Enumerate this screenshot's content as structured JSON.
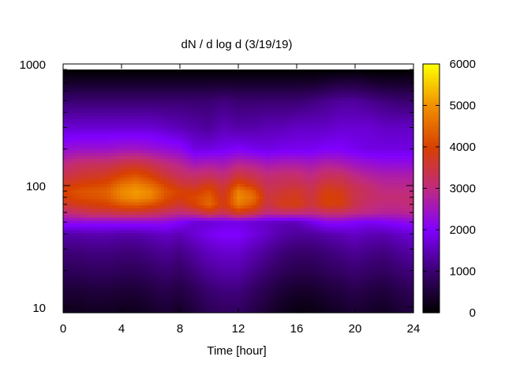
{
  "chart_data": {
    "type": "heatmap",
    "title": "dN / d log d (3/19/19)",
    "xlabel": "Time [hour]",
    "ylabel": "",
    "x_ticks": [
      "0",
      "4",
      "8",
      "12",
      "16",
      "20",
      "24"
    ],
    "y_ticks": [
      "10",
      "100",
      "1000"
    ],
    "colorbar_ticks": [
      "0",
      "1000",
      "2000",
      "3000",
      "4000",
      "5000",
      "6000"
    ],
    "xlim": [
      0,
      24
    ],
    "ylim": [
      9,
      1000
    ],
    "y_scale": "log",
    "data_y_range": [
      9,
      900
    ],
    "colorbar_range": [
      0,
      6000
    ],
    "colormap": [
      "#000000",
      "#3a0070",
      "#8000ff",
      "#c02a80",
      "#d84000",
      "#f09000",
      "#ffff00"
    ],
    "grid": false,
    "x": [
      0,
      1,
      2,
      3,
      4,
      5,
      6,
      7,
      8,
      9,
      10,
      11,
      12,
      13,
      14,
      15,
      16,
      17,
      18,
      19,
      20,
      21,
      22,
      23,
      24
    ],
    "diameter": [
      10,
      14,
      20,
      30,
      40,
      50,
      60,
      70,
      80,
      90,
      100,
      120,
      150,
      200,
      300,
      500,
      700,
      900
    ],
    "z": [
      [
        300,
        300,
        350,
        350,
        300,
        300,
        400,
        500,
        400,
        600,
        800,
        900,
        900,
        700,
        500,
        300,
        200,
        200,
        300,
        400,
        500,
        400,
        350,
        500,
        600
      ],
      [
        500,
        500,
        550,
        550,
        500,
        500,
        600,
        700,
        600,
        800,
        1000,
        1100,
        1100,
        900,
        700,
        500,
        400,
        400,
        500,
        600,
        700,
        600,
        550,
        700,
        800
      ],
      [
        800,
        800,
        850,
        850,
        800,
        800,
        900,
        1000,
        900,
        1100,
        1300,
        1400,
        1400,
        1200,
        1000,
        800,
        700,
        700,
        800,
        900,
        1000,
        900,
        850,
        1000,
        1100
      ],
      [
        1100,
        1100,
        1150,
        1150,
        1100,
        1100,
        1200,
        1300,
        1200,
        1400,
        1600,
        1700,
        1700,
        1500,
        1300,
        1100,
        1000,
        1000,
        1100,
        1200,
        1300,
        1200,
        1150,
        1300,
        1400
      ],
      [
        1400,
        1400,
        1450,
        1450,
        1400,
        1400,
        1500,
        1600,
        1500,
        1700,
        1900,
        2000,
        2000,
        1800,
        1600,
        1400,
        1300,
        1300,
        1400,
        1500,
        1600,
        1500,
        1450,
        1600,
        1700
      ],
      [
        2200,
        2200,
        2200,
        2200,
        2200,
        2200,
        2200,
        2200,
        2000,
        1700,
        1700,
        1800,
        1800,
        1700,
        1600,
        1500,
        1500,
        1800,
        2100,
        2100,
        2000,
        1900,
        2000,
        2100,
        2200
      ],
      [
        3000,
        3200,
        3400,
        3400,
        3500,
        3500,
        3400,
        3200,
        3000,
        3200,
        3600,
        3300,
        3800,
        3500,
        3000,
        3100,
        3100,
        3000,
        3200,
        3200,
        3000,
        2900,
        2800,
        2800,
        2900
      ],
      [
        3600,
        3800,
        3900,
        4000,
        4300,
        4400,
        4200,
        3900,
        3600,
        4000,
        4500,
        3800,
        4700,
        4300,
        3400,
        3800,
        3900,
        3500,
        3900,
        3900,
        3400,
        3100,
        3000,
        3000,
        3100
      ],
      [
        3900,
        4100,
        4200,
        4300,
        4800,
        5000,
        4800,
        4200,
        3900,
        4100,
        4400,
        3700,
        4900,
        4600,
        3500,
        3700,
        3800,
        3500,
        4000,
        3900,
        3400,
        3200,
        3100,
        3100,
        3100
      ],
      [
        4000,
        4200,
        4300,
        4400,
        4900,
        5100,
        4900,
        4300,
        4000,
        3900,
        4200,
        3600,
        4800,
        4400,
        3400,
        3600,
        3700,
        3400,
        3900,
        3800,
        3400,
        3200,
        3000,
        3000,
        3000
      ],
      [
        3800,
        4000,
        4100,
        4200,
        4700,
        4900,
        4600,
        4100,
        3700,
        3600,
        3900,
        3500,
        4300,
        3900,
        3300,
        3400,
        3500,
        3300,
        3700,
        3600,
        3300,
        3100,
        2900,
        2900,
        2900
      ],
      [
        3400,
        3600,
        3700,
        3800,
        4100,
        4300,
        4000,
        3600,
        3300,
        3200,
        3300,
        3100,
        3600,
        3400,
        3100,
        3200,
        3200,
        3000,
        3300,
        3300,
        3000,
        2800,
        2700,
        2700,
        2700
      ],
      [
        3000,
        3200,
        3300,
        3300,
        3500,
        3600,
        3400,
        3100,
        2900,
        2600,
        2700,
        2600,
        2900,
        2800,
        2600,
        2700,
        2700,
        2600,
        2800,
        2700,
        2500,
        2400,
        2300,
        2300,
        2300
      ],
      [
        2300,
        2400,
        2400,
        2400,
        2500,
        2500,
        2400,
        2300,
        2200,
        1800,
        1800,
        1900,
        2000,
        1900,
        1800,
        1900,
        1900,
        1900,
        2000,
        2000,
        1900,
        1800,
        1800,
        1800,
        1800
      ],
      [
        1700,
        1700,
        1700,
        1700,
        1700,
        1700,
        1700,
        1600,
        1500,
        1400,
        1300,
        1500,
        1400,
        1400,
        1500,
        1500,
        1600,
        1600,
        1600,
        1700,
        1700,
        1700,
        1600,
        1600,
        1600
      ],
      [
        1000,
        1000,
        1000,
        1000,
        1000,
        1000,
        1000,
        1000,
        1000,
        1000,
        1000,
        1100,
        1000,
        1000,
        1000,
        1000,
        1000,
        1100,
        1200,
        1300,
        1300,
        1200,
        1100,
        1000,
        1000
      ],
      [
        400,
        400,
        400,
        400,
        400,
        400,
        400,
        400,
        400,
        400,
        400,
        400,
        400,
        400,
        400,
        400,
        400,
        400,
        500,
        600,
        600,
        500,
        400,
        400,
        400
      ],
      [
        0,
        0,
        0,
        0,
        0,
        0,
        0,
        0,
        0,
        0,
        0,
        0,
        0,
        0,
        0,
        0,
        0,
        0,
        0,
        0,
        0,
        0,
        0,
        0,
        0
      ]
    ]
  }
}
